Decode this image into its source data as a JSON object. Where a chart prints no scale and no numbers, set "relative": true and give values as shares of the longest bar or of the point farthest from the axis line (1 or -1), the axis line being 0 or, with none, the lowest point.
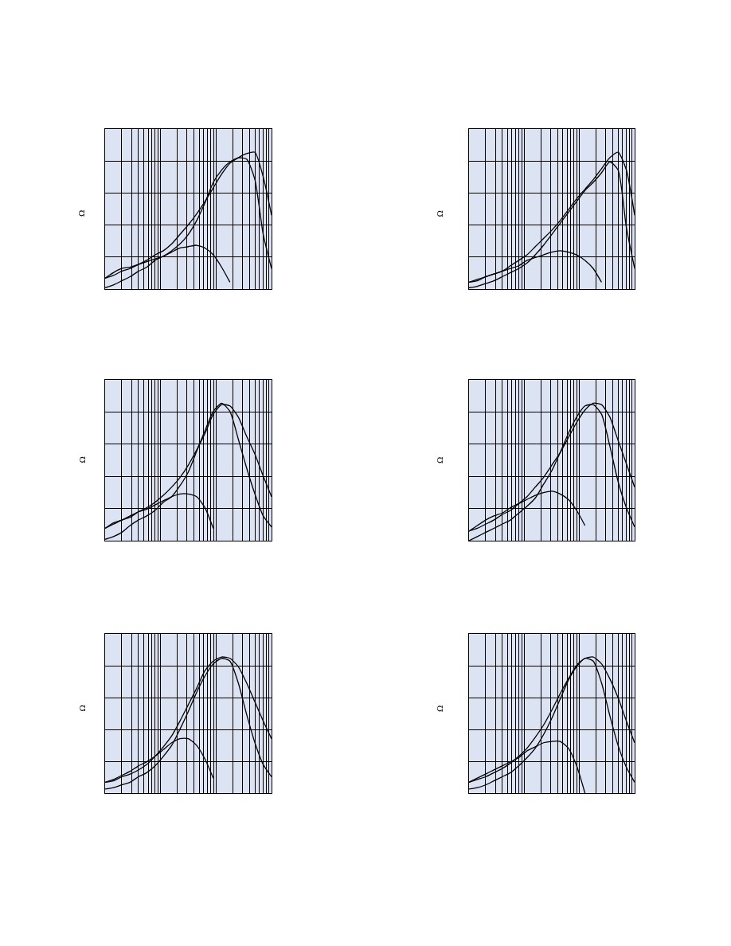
{
  "chart_data": [
    {
      "type": "line",
      "ylabel": "Ω",
      "relative": true,
      "grid": true,
      "categories": [
        null,
        null,
        null,
        null,
        null,
        null,
        null,
        null,
        null,
        null,
        null,
        null,
        null,
        null,
        null,
        null,
        null,
        null,
        null,
        null,
        null
      ],
      "series": [
        {
          "color": "#000000",
          "values": [
            0.08,
            0.1,
            0.13,
            0.15,
            0.18,
            0.21,
            0.25,
            0.28,
            0.33,
            0.4,
            0.47,
            0.55,
            0.64,
            0.74,
            0.84,
            0.92,
            0.96,
            0.99,
            1.0,
            0.82,
            0.54
          ]
        },
        {
          "color": "#000000",
          "values": [
            0.01,
            0.03,
            0.06,
            0.09,
            0.13,
            0.16,
            0.21,
            0.24,
            0.28,
            0.33,
            0.4,
            0.5,
            0.63,
            0.78,
            0.87,
            0.93,
            0.96,
            0.95,
            0.8,
            0.4,
            0.15
          ]
        },
        {
          "color": "#000000",
          "values": [
            0.08,
            0.12,
            0.15,
            0.16,
            0.18,
            0.2,
            0.22,
            0.24,
            0.27,
            0.3,
            0.31,
            0.32,
            0.3,
            0.25,
            0.16,
            0.05,
            null,
            null,
            null,
            null,
            null
          ]
        }
      ]
    },
    {
      "type": "line",
      "ylabel": "Ω",
      "relative": true,
      "grid": true,
      "categories": [
        null,
        null,
        null,
        null,
        null,
        null,
        null,
        null,
        null,
        null,
        null,
        null,
        null,
        null,
        null,
        null,
        null,
        null,
        null,
        null,
        null
      ],
      "series": [
        {
          "color": "#000000",
          "values": [
            0.05,
            0.06,
            0.09,
            0.11,
            0.13,
            0.17,
            0.21,
            0.25,
            0.31,
            0.37,
            0.43,
            0.5,
            0.58,
            0.66,
            0.73,
            0.8,
            0.88,
            0.96,
            1.0,
            0.87,
            0.54
          ]
        },
        {
          "color": "#000000",
          "values": [
            0.01,
            0.02,
            0.04,
            0.06,
            0.09,
            0.12,
            0.15,
            0.19,
            0.25,
            0.32,
            0.4,
            0.48,
            0.56,
            0.64,
            0.72,
            0.78,
            0.85,
            0.93,
            0.87,
            0.45,
            0.15
          ]
        },
        {
          "color": "#000000",
          "values": [
            0.05,
            0.07,
            0.09,
            0.11,
            0.13,
            0.15,
            0.17,
            0.21,
            0.23,
            0.25,
            0.27,
            0.28,
            0.27,
            0.25,
            0.21,
            0.15,
            0.05,
            null,
            null,
            null,
            null
          ]
        }
      ]
    },
    {
      "type": "line",
      "ylabel": "Ω",
      "relative": true,
      "grid": true,
      "categories": [
        null,
        null,
        null,
        null,
        null,
        null,
        null,
        null,
        null,
        null,
        null,
        null,
        null,
        null,
        null,
        null,
        null,
        null,
        null,
        null,
        null
      ],
      "series": [
        {
          "color": "#000000",
          "values": [
            0.09,
            0.12,
            0.15,
            0.17,
            0.21,
            0.24,
            0.28,
            0.33,
            0.39,
            0.46,
            0.55,
            0.66,
            0.78,
            0.92,
            0.99,
            0.98,
            0.9,
            0.76,
            0.63,
            0.47,
            0.32
          ]
        },
        {
          "color": "#000000",
          "values": [
            0.01,
            0.03,
            0.06,
            0.11,
            0.15,
            0.18,
            0.22,
            0.28,
            0.32,
            0.4,
            0.5,
            0.65,
            0.8,
            0.94,
            1.0,
            0.94,
            0.74,
            0.53,
            0.34,
            0.18,
            0.1
          ]
        },
        {
          "color": "#000000",
          "values": [
            0.09,
            0.13,
            0.15,
            0.18,
            0.21,
            0.23,
            0.26,
            0.29,
            0.32,
            0.34,
            0.34,
            0.32,
            0.24,
            0.09,
            null,
            null,
            null,
            null,
            null,
            null,
            null
          ]
        }
      ]
    },
    {
      "type": "line",
      "ylabel": "Ω",
      "relative": true,
      "grid": true,
      "categories": [
        null,
        null,
        null,
        null,
        null,
        null,
        null,
        null,
        null,
        null,
        null,
        null,
        null,
        null,
        null,
        null,
        null,
        null,
        null,
        null,
        null
      ],
      "series": [
        {
          "color": "#000000",
          "values": [
            0.07,
            0.09,
            0.12,
            0.15,
            0.19,
            0.22,
            0.27,
            0.32,
            0.39,
            0.46,
            0.55,
            0.64,
            0.75,
            0.86,
            0.95,
            1.0,
            0.99,
            0.9,
            0.73,
            0.56,
            0.39
          ]
        },
        {
          "color": "#000000",
          "values": [
            0.0,
            0.03,
            0.06,
            0.09,
            0.12,
            0.15,
            0.2,
            0.25,
            0.31,
            0.41,
            0.51,
            0.64,
            0.78,
            0.9,
            0.98,
            0.99,
            0.92,
            0.69,
            0.43,
            0.24,
            0.1
          ]
        },
        {
          "color": "#000000",
          "values": [
            0.07,
            0.11,
            0.15,
            0.18,
            0.2,
            0.24,
            0.27,
            0.3,
            0.33,
            0.35,
            0.36,
            0.34,
            0.3,
            0.22,
            0.11,
            null,
            null,
            null,
            null,
            null,
            null
          ]
        }
      ]
    },
    {
      "type": "line",
      "ylabel": "Ω",
      "relative": true,
      "grid": true,
      "categories": [
        null,
        null,
        null,
        null,
        null,
        null,
        null,
        null,
        null,
        null,
        null,
        null,
        null,
        null,
        null,
        null,
        null,
        null,
        null,
        null,
        null
      ],
      "series": [
        {
          "color": "#000000",
          "values": [
            0.08,
            0.09,
            0.12,
            0.14,
            0.17,
            0.21,
            0.27,
            0.34,
            0.42,
            0.53,
            0.65,
            0.77,
            0.9,
            0.97,
            1.0,
            0.99,
            0.93,
            0.81,
            0.67,
            0.53,
            0.4
          ]
        },
        {
          "color": "#000000",
          "values": [
            0.03,
            0.04,
            0.06,
            0.08,
            0.12,
            0.15,
            0.2,
            0.27,
            0.35,
            0.47,
            0.6,
            0.74,
            0.86,
            0.95,
            0.99,
            0.97,
            0.81,
            0.58,
            0.37,
            0.21,
            0.12
          ]
        },
        {
          "color": "#000000",
          "values": [
            0.08,
            0.1,
            0.13,
            0.16,
            0.2,
            0.23,
            0.27,
            0.32,
            0.37,
            0.4,
            0.4,
            0.35,
            0.25,
            0.11,
            null,
            null,
            null,
            null,
            null,
            null,
            null
          ]
        }
      ]
    },
    {
      "type": "line",
      "ylabel": "Ω",
      "relative": true,
      "grid": true,
      "categories": [
        null,
        null,
        null,
        null,
        null,
        null,
        null,
        null,
        null,
        null,
        null,
        null,
        null,
        null,
        null,
        null,
        null,
        null,
        null,
        null,
        null
      ],
      "series": [
        {
          "color": "#000000",
          "values": [
            0.08,
            0.1,
            0.12,
            0.15,
            0.18,
            0.22,
            0.27,
            0.33,
            0.41,
            0.5,
            0.61,
            0.73,
            0.84,
            0.94,
            0.99,
            1.0,
            0.95,
            0.84,
            0.7,
            0.53,
            0.37
          ]
        },
        {
          "color": "#000000",
          "values": [
            0.03,
            0.04,
            0.06,
            0.09,
            0.12,
            0.15,
            0.2,
            0.26,
            0.33,
            0.43,
            0.55,
            0.69,
            0.83,
            0.93,
            0.99,
            0.97,
            0.81,
            0.57,
            0.35,
            0.19,
            0.08
          ]
        },
        {
          "color": "#000000",
          "values": [
            0.08,
            0.11,
            0.14,
            0.17,
            0.2,
            0.23,
            0.26,
            0.31,
            0.34,
            0.37,
            0.38,
            0.38,
            0.33,
            0.2,
            0.0,
            null,
            null,
            null,
            null,
            null,
            null
          ]
        }
      ]
    }
  ]
}
